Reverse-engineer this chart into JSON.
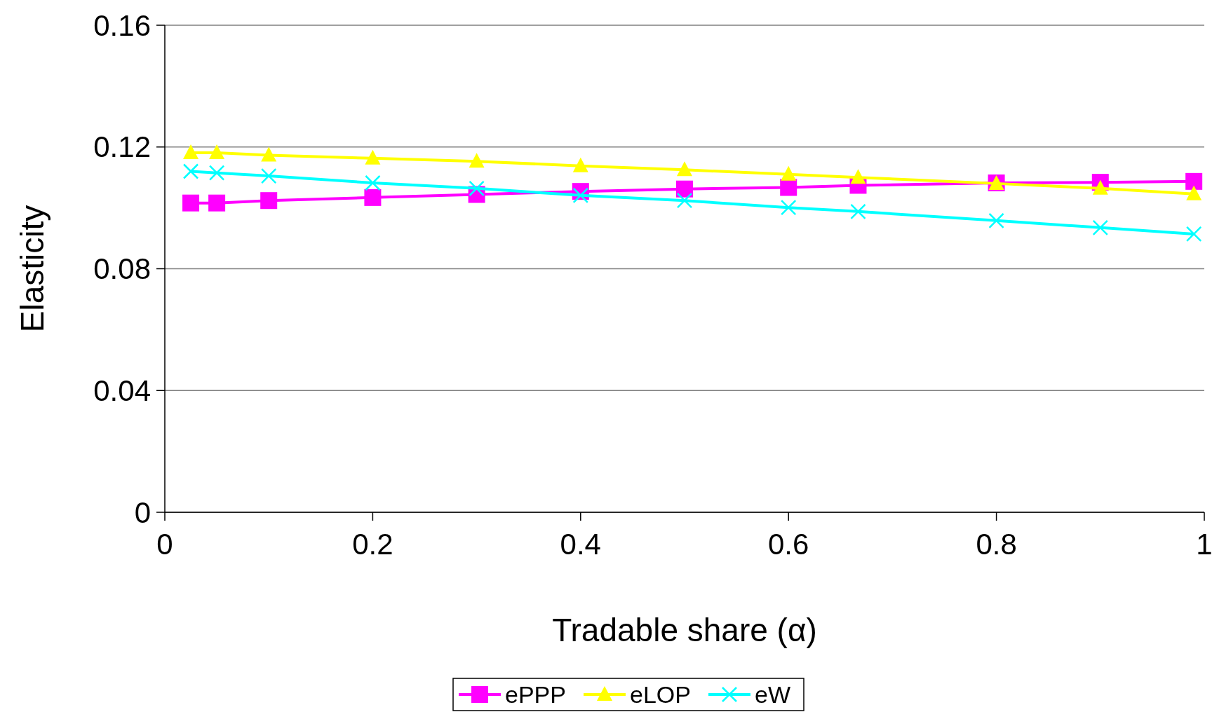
{
  "chart_data": {
    "type": "line",
    "xlabel": "Tradable share (α)",
    "ylabel": "Elasticity",
    "x": [
      0.025,
      0.05,
      0.1,
      0.2,
      0.3,
      0.4,
      0.5,
      0.6,
      0.667,
      0.8,
      0.9,
      0.99
    ],
    "series": [
      {
        "name": "ePPP",
        "color": "#ff00ff",
        "marker": "square",
        "values": [
          0.1016,
          0.1016,
          0.1024,
          0.1034,
          0.1044,
          0.1054,
          0.1062,
          0.1067,
          0.1074,
          0.1082,
          0.1084,
          0.1087
        ]
      },
      {
        "name": "eLOP",
        "color": "#ffff00",
        "marker": "triangle",
        "values": [
          0.1181,
          0.1181,
          0.1173,
          0.1163,
          0.1153,
          0.1138,
          0.1125,
          0.111,
          0.11,
          0.108,
          0.1064,
          0.1046
        ]
      },
      {
        "name": "eW",
        "color": "#00ffff",
        "marker": "cross",
        "values": [
          0.112,
          0.1115,
          0.1105,
          0.1082,
          0.1064,
          0.1041,
          0.1024,
          0.1001,
          0.0988,
          0.0958,
          0.0935,
          0.0914
        ]
      }
    ],
    "xlim": [
      0,
      1
    ],
    "xticks": [
      0,
      0.2,
      0.4,
      0.6,
      0.8,
      1
    ],
    "ylim": [
      0,
      0.16
    ],
    "yticks": [
      0,
      0.04,
      0.08,
      0.12,
      0.16
    ],
    "grid": "y",
    "legend": "bottom"
  }
}
